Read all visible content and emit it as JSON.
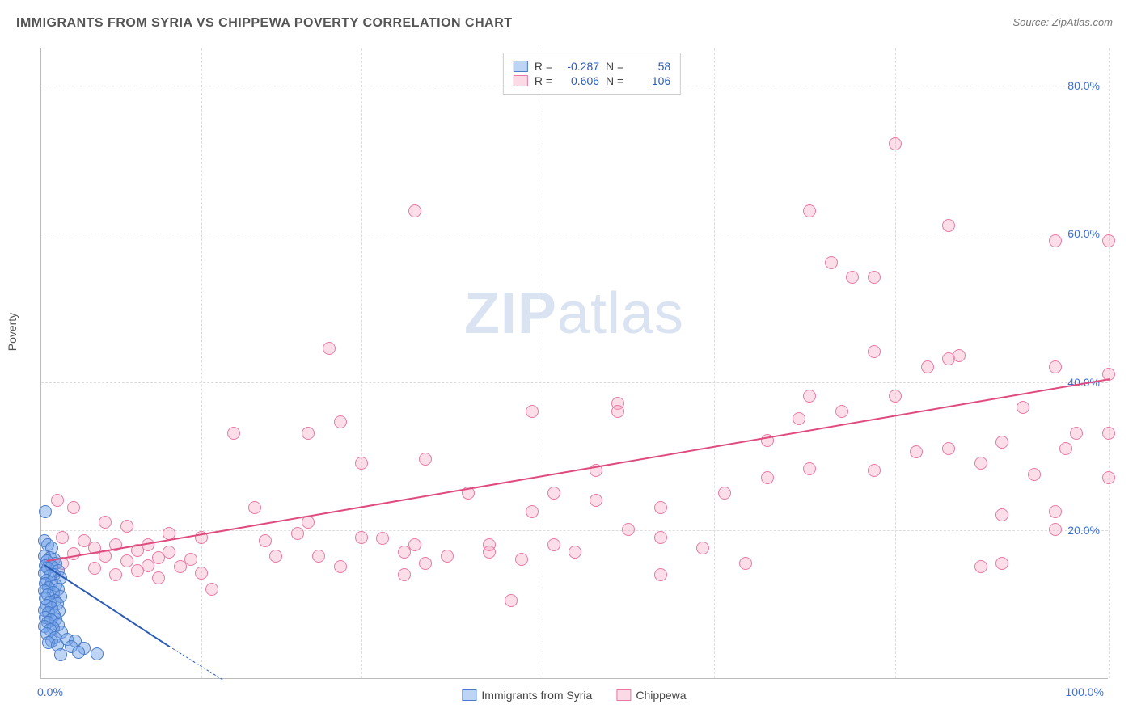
{
  "header": {
    "title": "IMMIGRANTS FROM SYRIA VS CHIPPEWA POVERTY CORRELATION CHART",
    "source": "Source: ZipAtlas.com"
  },
  "watermark": {
    "zip": "ZIP",
    "atlas": "atlas"
  },
  "chart": {
    "type": "scatter",
    "ylabel": "Poverty",
    "xlim": [
      0,
      100
    ],
    "ylim": [
      0,
      85
    ],
    "yticks": [
      20.0,
      40.0,
      60.0,
      80.0
    ],
    "ytick_labels": [
      "20.0%",
      "40.0%",
      "60.0%",
      "80.0%"
    ],
    "xtick_min": "0.0%",
    "xtick_max": "100.0%",
    "xgrid": [
      15,
      30,
      47,
      63,
      80,
      100
    ],
    "background_color": "#ffffff",
    "grid_color": "#dddddd",
    "axis_color": "#bbbbbb",
    "tick_color": "#3b6fd6",
    "marker_size": 16,
    "series": {
      "syria": {
        "label": "Immigrants from Syria",
        "color_fill": "rgba(110,160,230,0.45)",
        "color_border": "#4a7bc8",
        "line_color": "#2b5bb5",
        "R": "-0.287",
        "N": "58",
        "trend": {
          "x1": 0.3,
          "y1": 15.5,
          "x2": 12,
          "y2": 4.5
        },
        "trend_dash": {
          "x1": 12,
          "y1": 4.5,
          "x2": 17,
          "y2": 0
        },
        "points": [
          [
            0.4,
            22.5
          ],
          [
            0.3,
            18.5
          ],
          [
            0.6,
            18
          ],
          [
            1.0,
            17.5
          ],
          [
            0.3,
            16.5
          ],
          [
            0.8,
            16.2
          ],
          [
            1.2,
            16
          ],
          [
            0.5,
            15.8
          ],
          [
            1.4,
            15.5
          ],
          [
            0.4,
            15.2
          ],
          [
            1.0,
            15
          ],
          [
            0.6,
            14.8
          ],
          [
            1.6,
            14.5
          ],
          [
            0.3,
            14.2
          ],
          [
            1.2,
            14
          ],
          [
            0.8,
            13.8
          ],
          [
            1.8,
            13.5
          ],
          [
            0.5,
            13.2
          ],
          [
            1.0,
            13
          ],
          [
            0.4,
            12.8
          ],
          [
            1.4,
            12.5
          ],
          [
            0.7,
            12.2
          ],
          [
            1.6,
            12
          ],
          [
            0.3,
            11.8
          ],
          [
            1.1,
            11.5
          ],
          [
            0.6,
            11.2
          ],
          [
            1.8,
            11
          ],
          [
            0.4,
            10.8
          ],
          [
            1.3,
            10.5
          ],
          [
            0.8,
            10.2
          ],
          [
            1.5,
            10
          ],
          [
            0.5,
            9.8
          ],
          [
            1.0,
            9.5
          ],
          [
            0.3,
            9.2
          ],
          [
            1.7,
            9
          ],
          [
            0.7,
            8.8
          ],
          [
            1.2,
            8.5
          ],
          [
            0.4,
            8.2
          ],
          [
            1.4,
            8
          ],
          [
            0.9,
            7.8
          ],
          [
            0.6,
            7.5
          ],
          [
            1.6,
            7.2
          ],
          [
            0.3,
            7
          ],
          [
            1.1,
            6.8
          ],
          [
            0.8,
            6.5
          ],
          [
            1.9,
            6.2
          ],
          [
            0.5,
            6
          ],
          [
            1.3,
            5.5
          ],
          [
            2.4,
            5.2
          ],
          [
            1.0,
            5
          ],
          [
            3.2,
            5
          ],
          [
            0.7,
            4.8
          ],
          [
            1.5,
            4.5
          ],
          [
            2.8,
            4.2
          ],
          [
            4.0,
            4
          ],
          [
            3.5,
            3.5
          ],
          [
            5.2,
            3.3
          ],
          [
            1.8,
            3.2
          ]
        ]
      },
      "chippewa": {
        "label": "Chippewa",
        "color_fill": "rgba(245,160,190,0.35)",
        "color_border": "#e77aa5",
        "line_color": "#e04b7d",
        "R": "0.606",
        "N": "106",
        "trend": {
          "x1": 0.5,
          "y1": 16,
          "x2": 100,
          "y2": 40.5
        },
        "points": [
          [
            1.5,
            24
          ],
          [
            3,
            23
          ],
          [
            6,
            21
          ],
          [
            8,
            20.5
          ],
          [
            2,
            19
          ],
          [
            4,
            18.5
          ],
          [
            7,
            18
          ],
          [
            10,
            18
          ],
          [
            5,
            17.5
          ],
          [
            9,
            17.2
          ],
          [
            12,
            17
          ],
          [
            3,
            16.8
          ],
          [
            6,
            16.5
          ],
          [
            11,
            16.2
          ],
          [
            14,
            16
          ],
          [
            8,
            15.8
          ],
          [
            2,
            15.5
          ],
          [
            10,
            15.2
          ],
          [
            13,
            15
          ],
          [
            5,
            14.8
          ],
          [
            9,
            14.5
          ],
          [
            15,
            14.2
          ],
          [
            7,
            14
          ],
          [
            11,
            13.5
          ],
          [
            18,
            33
          ],
          [
            25,
            33
          ],
          [
            28,
            34.5
          ],
          [
            30,
            29
          ],
          [
            30,
            19
          ],
          [
            36,
            29.5
          ],
          [
            21,
            18.5
          ],
          [
            24,
            19.5
          ],
          [
            28,
            15
          ],
          [
            35,
            18
          ],
          [
            32,
            18.8
          ],
          [
            34,
            17
          ],
          [
            36,
            15.5
          ],
          [
            38,
            16.5
          ],
          [
            42,
            18
          ],
          [
            45,
            16
          ],
          [
            48,
            18
          ],
          [
            50,
            17
          ],
          [
            44,
            10.5
          ],
          [
            55,
            20
          ],
          [
            58,
            23
          ],
          [
            35,
            63
          ],
          [
            46,
            36
          ],
          [
            52,
            24
          ],
          [
            27,
            44.5
          ],
          [
            48,
            25
          ],
          [
            54,
            37
          ],
          [
            58,
            19
          ],
          [
            52,
            28
          ],
          [
            62,
            17.5
          ],
          [
            66,
            15.5
          ],
          [
            54,
            36
          ],
          [
            68,
            32
          ],
          [
            71,
            35
          ],
          [
            72,
            28.2
          ],
          [
            75,
            36
          ],
          [
            78,
            28
          ],
          [
            82,
            30.5
          ],
          [
            85,
            43
          ],
          [
            78,
            44
          ],
          [
            72,
            63
          ],
          [
            74,
            56
          ],
          [
            76,
            54
          ],
          [
            80,
            38
          ],
          [
            83,
            42
          ],
          [
            88,
            29
          ],
          [
            90,
            31.8
          ],
          [
            92,
            36.5
          ],
          [
            95,
            42
          ],
          [
            97,
            33
          ],
          [
            100,
            33
          ],
          [
            80,
            72
          ],
          [
            85,
            61
          ],
          [
            95,
            59
          ],
          [
            100,
            59
          ],
          [
            100,
            41
          ],
          [
            72,
            38
          ],
          [
            86,
            43.5
          ],
          [
            68,
            27
          ],
          [
            64,
            25
          ],
          [
            58,
            14
          ],
          [
            93,
            27.5
          ],
          [
            95,
            22.5
          ],
          [
            90,
            22
          ],
          [
            100,
            27
          ],
          [
            95,
            20
          ],
          [
            90,
            15.5
          ],
          [
            96,
            31
          ],
          [
            88,
            15
          ],
          [
            85,
            31
          ],
          [
            78,
            54
          ],
          [
            40,
            25
          ],
          [
            42,
            17
          ],
          [
            46,
            22.5
          ],
          [
            25,
            21
          ],
          [
            20,
            23
          ],
          [
            15,
            19
          ],
          [
            12,
            19.5
          ],
          [
            34,
            14
          ],
          [
            26,
            16.5
          ],
          [
            22,
            16.5
          ],
          [
            16,
            12
          ]
        ]
      }
    }
  },
  "legend_corr": {
    "R_label": "R =",
    "N_label": "N ="
  },
  "bottom_legend": {
    "item1": "Immigrants from Syria",
    "item2": "Chippewa"
  }
}
